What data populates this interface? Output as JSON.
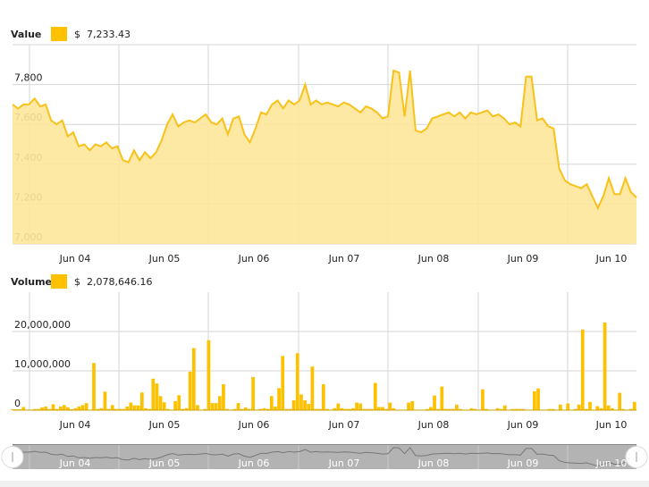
{
  "colors": {
    "accent": "#fdc100",
    "line": "#f7c21a",
    "fill": "#fde69a",
    "grid": "#d6d6d6",
    "navigator": "#b3b3b3"
  },
  "value_header": {
    "label": "Value",
    "amount": "$  7,233.43"
  },
  "volume_header": {
    "label": "Volume",
    "amount": "$  2,078,646.16"
  },
  "chart_data": [
    {
      "type": "area",
      "ylim": [
        7000,
        8000
      ],
      "yticks": [
        7000,
        7200,
        7400,
        7600,
        7800
      ],
      "ytick_labels": [
        "7,000",
        "7,200",
        "7,400",
        "7,600",
        "7,800"
      ],
      "xtick_labels": [
        "Jun 04",
        "Jun 05",
        "Jun 06",
        "Jun 07",
        "Jun 08",
        "Jun 09",
        "Jun 10"
      ],
      "grid": true,
      "values": [
        7700,
        7680,
        7700,
        7700,
        7730,
        7690,
        7700,
        7620,
        7600,
        7620,
        7540,
        7560,
        7490,
        7500,
        7470,
        7500,
        7490,
        7510,
        7480,
        7490,
        7420,
        7410,
        7470,
        7420,
        7460,
        7430,
        7460,
        7520,
        7600,
        7650,
        7590,
        7610,
        7620,
        7610,
        7630,
        7650,
        7610,
        7600,
        7630,
        7550,
        7630,
        7640,
        7550,
        7510,
        7580,
        7660,
        7650,
        7700,
        7720,
        7680,
        7720,
        7700,
        7720,
        7800,
        7700,
        7720,
        7700,
        7710,
        7700,
        7690,
        7710,
        7700,
        7680,
        7660,
        7690,
        7680,
        7660,
        7630,
        7640,
        7870,
        7860,
        7640,
        7870,
        7570,
        7560,
        7580,
        7630,
        7640,
        7650,
        7660,
        7640,
        7660,
        7630,
        7660,
        7650,
        7660,
        7670,
        7640,
        7650,
        7630,
        7600,
        7610,
        7590,
        7840,
        7840,
        7620,
        7630,
        7590,
        7580,
        7380,
        7320,
        7300,
        7290,
        7280,
        7300,
        7240,
        7180,
        7240,
        7330,
        7250,
        7250,
        7330,
        7260,
        7233
      ]
    },
    {
      "type": "bar",
      "ylim": [
        0,
        30000000
      ],
      "yticks": [
        0,
        10000000,
        20000000
      ],
      "ytick_labels": [
        "0",
        "10,000,000",
        "20,000,000"
      ],
      "xtick_labels": [
        "Jun 04",
        "Jun 05",
        "Jun 06",
        "Jun 07",
        "Jun 08",
        "Jun 09",
        "Jun 10"
      ],
      "grid": true,
      "values_millions": [
        0.2,
        0.2,
        0.2,
        0.8,
        0.1,
        0.1,
        0.3,
        0.3,
        0.7,
        0.9,
        0.3,
        1.5,
        0.3,
        0.9,
        1.3,
        0.7,
        0.2,
        0.5,
        0.9,
        1.3,
        1.8,
        0.1,
        12,
        0.3,
        0.5,
        4.7,
        0.3,
        1.3,
        0.3,
        0.3,
        0.3,
        0.9,
        1.9,
        1.2,
        1.2,
        4.5,
        0.5,
        0.3,
        8,
        6.8,
        3.6,
        2,
        0.3,
        0.1,
        2.3,
        3.8,
        0.3,
        0.5,
        9.8,
        15.8,
        1.3,
        0.1,
        0.3,
        17.8,
        1.8,
        1.8,
        3.6,
        6.6,
        0.3,
        0.1,
        0.3,
        1.8,
        0.3,
        0.7,
        0.3,
        8.4,
        0.1,
        0.3,
        0.5,
        0.3,
        3.6,
        0.9,
        5.6,
        13.8,
        0.3,
        0.3,
        2.5,
        14.5,
        4,
        2.5,
        1.6,
        11.1,
        0.3,
        0.3,
        6.6,
        0.3,
        0.1,
        0.5,
        1.7,
        0.5,
        0.3,
        0.3,
        0.5,
        1.9,
        1.7,
        0.3,
        0.3,
        0.3,
        6.9,
        0.8,
        0.8,
        0.3,
        1.9,
        0.5,
        0.1,
        0.1,
        0.1,
        1.9,
        2.3,
        0.1,
        0.1,
        0.1,
        0.3,
        0.8,
        3.7,
        0.3,
        6,
        0.3,
        0.3,
        0.3,
        1.4,
        0.3,
        0.1,
        0.1,
        0.5,
        0.3,
        0.1,
        5.3,
        0.3,
        0.1,
        0.1,
        0.5,
        0.3,
        1.2,
        0.1,
        0.3,
        0.3,
        0.3,
        0.3,
        0.1,
        0.1,
        4.8,
        5.5,
        0.1,
        0.1,
        0.3,
        0.3,
        0.1,
        1.4,
        0.1,
        1.7,
        0.1,
        0.3,
        1.4,
        20.5,
        0.3,
        2.1,
        0.1,
        1,
        0.5,
        22.3,
        1.2,
        0.5,
        0.1,
        4.4,
        0.3,
        0.1,
        0.3,
        2.1
      ]
    },
    {
      "type": "navigator",
      "xtick_labels": [
        "Jun 04",
        "Jun 05",
        "Jun 06",
        "Jun 07",
        "Jun 08",
        "Jun 09",
        "Jun 10"
      ]
    }
  ]
}
